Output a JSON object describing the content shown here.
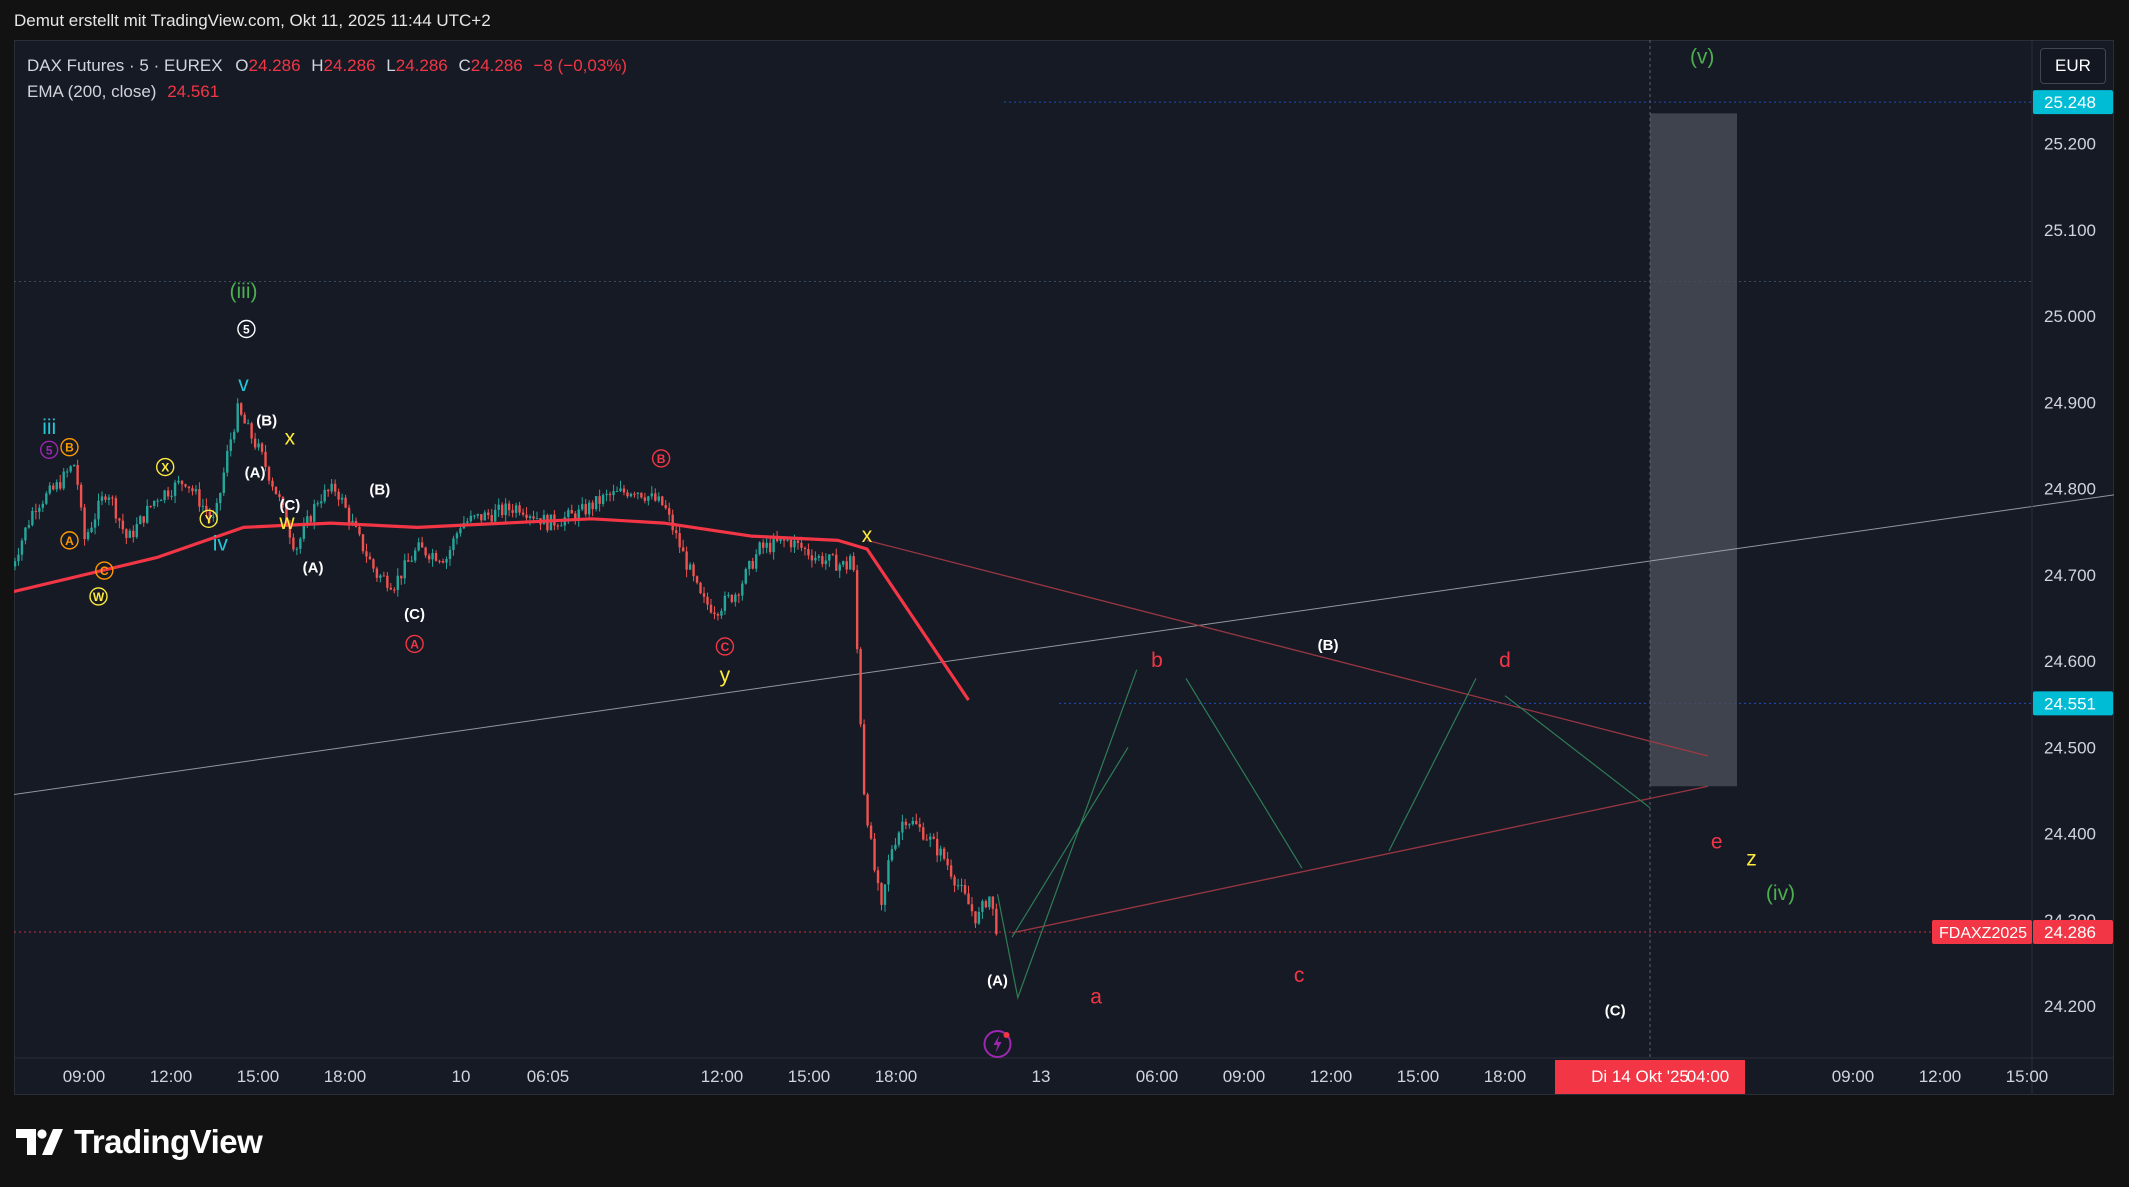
{
  "caption": "Demut erstellt mit TradingView.com, Okt 11, 2025 11:44 UTC+2",
  "legend": {
    "symbol": "DAX Futures · 5 · EUREX",
    "o_label": "O",
    "o_value": "24.286",
    "h_label": "H",
    "h_value": "24.286",
    "l_label": "L",
    "l_value": "24.286",
    "c_label": "C",
    "c_value": "24.286",
    "change": "−8 (−0,03%)",
    "ema_label": "EMA (200, close)",
    "ema_value": "24.561"
  },
  "currency_button": "EUR",
  "brand": "TradingView",
  "colors": {
    "background": "#161a25",
    "up": "#26a69a",
    "down": "#ef5350",
    "ema": "#f23645",
    "axis_text": "#d1d4dc",
    "wave_red": "#f23645",
    "wave_yellow": "#ffeb3b",
    "wave_green": "#4caf50",
    "wave_cyan": "#26c6da",
    "wave_orange": "#ff9800",
    "wave_purple": "#9c27b0"
  },
  "chart_data": {
    "type": "candlestick",
    "instrument": "DAX Futures (FDAXZ2025), 5 min, EUREX",
    "y_ticks": [
      "25.200",
      "25.100",
      "25.000",
      "24.900",
      "24.800",
      "24.700",
      "24.600",
      "24.500",
      "24.400",
      "24.300",
      "24.200"
    ],
    "ylim": [
      24.14,
      25.32
    ],
    "x_ticks": [
      "09:00",
      "12:00",
      "15:00",
      "18:00",
      "10",
      "06:05",
      "12:00",
      "15:00",
      "18:00",
      "13",
      "06:00",
      "09:00",
      "12:00",
      "15:00",
      "18:00",
      "09:00",
      "12:00",
      "15:00"
    ],
    "x_tick_positions": [
      0.5,
      3.5,
      6.5,
      9.5,
      13.5,
      16.5,
      22.5,
      25.5,
      28.5,
      33.5,
      37.5,
      40.5,
      43.5,
      46.5,
      49.5,
      61.5,
      64.5,
      67.5
    ],
    "crosshair_label_date": "Di 14 Okt '25",
    "crosshair_label_time": "04:00",
    "price_labels": [
      {
        "text": "25.248",
        "value": 25.248,
        "color": "#00bcd4"
      },
      {
        "text": "24.551",
        "value": 24.551,
        "color": "#00bcd4"
      },
      {
        "text": "24.286",
        "value": 24.286,
        "color": "#f23645",
        "tag": "FDAXZ2025"
      }
    ],
    "hlines": [
      25.04
    ],
    "last_price": 24.286,
    "ema_value": 24.561,
    "ema": [
      [
        -2,
        24.68
      ],
      [
        3,
        24.72
      ],
      [
        6,
        24.755
      ],
      [
        9,
        24.76
      ],
      [
        12,
        24.755
      ],
      [
        15,
        24.76
      ],
      [
        18,
        24.765
      ],
      [
        20.5,
        24.76
      ],
      [
        23.5,
        24.745
      ],
      [
        26.5,
        24.74
      ],
      [
        27.5,
        24.73
      ],
      [
        31,
        24.555
      ]
    ],
    "price_path": [
      [
        -2,
        24.71
      ],
      [
        -1.2,
        24.78
      ],
      [
        -0.5,
        24.8
      ],
      [
        0.2,
        24.83
      ],
      [
        0.5,
        24.74
      ],
      [
        1.3,
        24.8
      ],
      [
        2.0,
        24.74
      ],
      [
        3.0,
        24.79
      ],
      [
        4.0,
        24.81
      ],
      [
        5.0,
        24.76
      ],
      [
        5.5,
        24.85
      ],
      [
        5.8,
        24.89
      ],
      [
        6.6,
        24.84
      ],
      [
        7.2,
        24.79
      ],
      [
        7.8,
        24.73
      ],
      [
        8.6,
        24.79
      ],
      [
        9.2,
        24.8
      ],
      [
        10.0,
        24.74
      ],
      [
        10.6,
        24.7
      ],
      [
        11.2,
        24.69
      ],
      [
        12.0,
        24.73
      ],
      [
        13.0,
        24.72
      ],
      [
        13.5,
        24.76
      ],
      [
        14.5,
        24.77
      ],
      [
        15.5,
        24.78
      ],
      [
        16.5,
        24.76
      ],
      [
        17.5,
        24.77
      ],
      [
        18.5,
        24.79
      ],
      [
        19.5,
        24.8
      ],
      [
        20.5,
        24.78
      ],
      [
        21.2,
        24.72
      ],
      [
        21.8,
        24.67
      ],
      [
        22.3,
        24.66
      ],
      [
        23.0,
        24.68
      ],
      [
        23.8,
        24.73
      ],
      [
        24.8,
        24.74
      ],
      [
        25.8,
        24.72
      ],
      [
        26.8,
        24.71
      ],
      [
        27.0,
        24.73
      ],
      [
        27.15,
        24.62
      ],
      [
        27.4,
        24.45
      ],
      [
        27.7,
        24.37
      ],
      [
        28.0,
        24.31
      ],
      [
        28.3,
        24.38
      ],
      [
        28.8,
        24.42
      ],
      [
        29.5,
        24.4
      ],
      [
        30.2,
        24.37
      ],
      [
        30.8,
        24.33
      ],
      [
        31.3,
        24.3
      ],
      [
        31.7,
        24.33
      ],
      [
        32.0,
        24.286
      ]
    ],
    "drawings": {
      "rising_line": [
        [
          -2,
          24.445
        ],
        [
          72,
          24.8
        ]
      ],
      "triangle_upper": [
        [
          27.5,
          24.74
        ],
        [
          56.5,
          24.49
        ]
      ],
      "triangle_lower": [
        [
          32.5,
          24.285
        ],
        [
          56.5,
          24.455
        ]
      ],
      "forecast_paths": [
        [
          [
            32.0,
            24.33
          ],
          [
            32.7,
            24.21
          ],
          [
            36.8,
            24.59
          ]
        ],
        [
          [
            32.5,
            24.28
          ],
          [
            36.5,
            24.5
          ]
        ],
        [
          [
            38.5,
            24.58
          ],
          [
            42.5,
            24.36
          ]
        ],
        [
          [
            45.5,
            24.38
          ],
          [
            48.5,
            24.58
          ]
        ],
        [
          [
            49.5,
            24.56
          ],
          [
            54.5,
            24.43
          ]
        ]
      ],
      "projection_box": {
        "x0": 54.5,
        "x1": 57.5,
        "y0": 24.455,
        "y1": 25.235
      },
      "vertical_marker_x": 54.5
    },
    "wave_labels": [
      {
        "text": "(iii)",
        "x": 6.0,
        "y": 25.028,
        "color": "green"
      },
      {
        "text": "5",
        "x": 6.1,
        "y": 24.985,
        "color": "white",
        "circled": true
      },
      {
        "text": "v",
        "x": 6.0,
        "y": 24.92,
        "color": "cyan"
      },
      {
        "text": "iii",
        "x": -0.7,
        "y": 24.87,
        "color": "cyan"
      },
      {
        "text": "5",
        "x": -0.7,
        "y": 24.845,
        "color": "purple",
        "circled": true
      },
      {
        "text": "B",
        "x": 0.0,
        "y": 24.848,
        "color": "orange",
        "circled": true
      },
      {
        "text": "X",
        "x": 3.3,
        "y": 24.825,
        "color": "yellow",
        "circled": true
      },
      {
        "text": "A",
        "x": 0.0,
        "y": 24.74,
        "color": "orange",
        "circled": true
      },
      {
        "text": "Y",
        "x": 4.8,
        "y": 24.765,
        "color": "yellow",
        "circled": true
      },
      {
        "text": "C",
        "x": 1.2,
        "y": 24.705,
        "color": "orange",
        "circled": true
      },
      {
        "text": "W",
        "x": 1.0,
        "y": 24.675,
        "color": "yellow",
        "circled": true
      },
      {
        "text": "iv",
        "x": 5.2,
        "y": 24.735,
        "color": "cyan"
      },
      {
        "text": "(B)",
        "x": 6.8,
        "y": 24.88,
        "color": "white"
      },
      {
        "text": "x",
        "x": 7.6,
        "y": 24.858,
        "color": "yellow"
      },
      {
        "text": "(A)",
        "x": 6.4,
        "y": 24.82,
        "color": "white"
      },
      {
        "text": "(C)",
        "x": 7.6,
        "y": 24.782,
        "color": "white"
      },
      {
        "text": "w",
        "x": 7.5,
        "y": 24.76,
        "color": "yellow"
      },
      {
        "text": "(A)",
        "x": 8.4,
        "y": 24.71,
        "color": "white"
      },
      {
        "text": "(B)",
        "x": 10.7,
        "y": 24.8,
        "color": "white"
      },
      {
        "text": "(C)",
        "x": 11.9,
        "y": 24.656,
        "color": "white"
      },
      {
        "text": "A",
        "x": 11.9,
        "y": 24.62,
        "color": "red",
        "circled": true
      },
      {
        "text": "B",
        "x": 20.4,
        "y": 24.835,
        "color": "red",
        "circled": true
      },
      {
        "text": "C",
        "x": 22.6,
        "y": 24.617,
        "color": "red",
        "circled": true
      },
      {
        "text": "y",
        "x": 22.6,
        "y": 24.583,
        "color": "yellow"
      },
      {
        "text": "x",
        "x": 27.5,
        "y": 24.745,
        "color": "yellow"
      },
      {
        "text": "(A)",
        "x": 32.0,
        "y": 24.231,
        "color": "white"
      },
      {
        "text": "a",
        "x": 35.4,
        "y": 24.21,
        "color": "red"
      },
      {
        "text": "b",
        "x": 37.5,
        "y": 24.6,
        "color": "red"
      },
      {
        "text": "(B)",
        "x": 43.4,
        "y": 24.62,
        "color": "white"
      },
      {
        "text": "c",
        "x": 42.4,
        "y": 24.235,
        "color": "red"
      },
      {
        "text": "d",
        "x": 49.5,
        "y": 24.6,
        "color": "red"
      },
      {
        "text": "(C)",
        "x": 53.3,
        "y": 24.196,
        "color": "white"
      },
      {
        "text": "e",
        "x": 56.8,
        "y": 24.39,
        "color": "red"
      },
      {
        "text": "z",
        "x": 58.0,
        "y": 24.37,
        "color": "yellow"
      },
      {
        "text": "(iv)",
        "x": 59.0,
        "y": 24.33,
        "color": "green"
      },
      {
        "text": "(v)",
        "x": 56.3,
        "y": 25.3,
        "color": "green"
      }
    ]
  }
}
